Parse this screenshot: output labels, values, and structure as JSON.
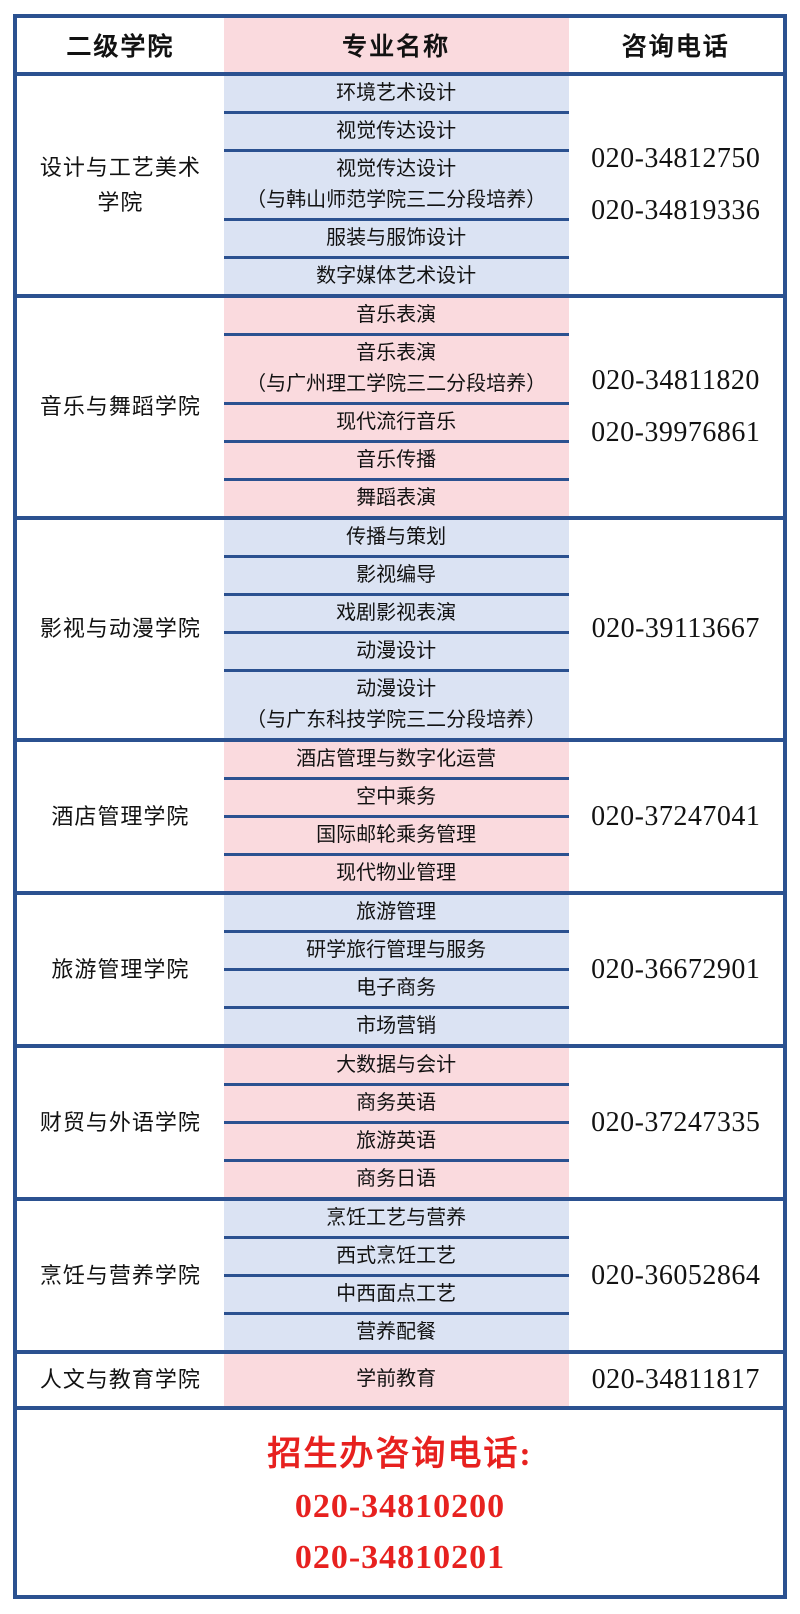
{
  "colors": {
    "border": "#2b5190",
    "pink": "#fadade",
    "blue": "#dbe3f3",
    "red": "#e7211f"
  },
  "table": {
    "headers": [
      "二级学院",
      "专业名称",
      "咨询电话"
    ],
    "sections": [
      {
        "college": "设计与工艺美术学院",
        "tint": "blue",
        "majors": [
          [
            "环境艺术设计"
          ],
          [
            "视觉传达设计"
          ],
          [
            "视觉传达设计",
            "（与韩山师范学院三二分段培养）"
          ],
          [
            "服装与服饰设计"
          ],
          [
            "数字媒体艺术设计"
          ]
        ],
        "phones": [
          "020-34812750",
          "020-34819336"
        ]
      },
      {
        "college": "音乐与舞蹈学院",
        "tint": "pink",
        "majors": [
          [
            "音乐表演"
          ],
          [
            "音乐表演",
            "（与广州理工学院三二分段培养）"
          ],
          [
            "现代流行音乐"
          ],
          [
            "音乐传播"
          ],
          [
            "舞蹈表演"
          ]
        ],
        "phones": [
          "020-34811820",
          "020-39976861"
        ]
      },
      {
        "college": "影视与动漫学院",
        "tint": "blue",
        "majors": [
          [
            "传播与策划"
          ],
          [
            "影视编导"
          ],
          [
            "戏剧影视表演"
          ],
          [
            "动漫设计"
          ],
          [
            "动漫设计",
            "（与广东科技学院三二分段培养）"
          ]
        ],
        "phones": [
          "020-39113667"
        ]
      },
      {
        "college": "酒店管理学院",
        "tint": "pink",
        "majors": [
          [
            "酒店管理与数字化运营"
          ],
          [
            "空中乘务"
          ],
          [
            "国际邮轮乘务管理"
          ],
          [
            "现代物业管理"
          ]
        ],
        "phones": [
          "020-37247041"
        ]
      },
      {
        "college": "旅游管理学院",
        "tint": "blue",
        "majors": [
          [
            "旅游管理"
          ],
          [
            "研学旅行管理与服务"
          ],
          [
            "电子商务"
          ],
          [
            "市场营销"
          ]
        ],
        "phones": [
          "020-36672901"
        ]
      },
      {
        "college": "财贸与外语学院",
        "tint": "pink",
        "majors": [
          [
            "大数据与会计"
          ],
          [
            "商务英语"
          ],
          [
            "旅游英语"
          ],
          [
            "商务日语"
          ]
        ],
        "phones": [
          "020-37247335"
        ]
      },
      {
        "college": "烹饪与营养学院",
        "tint": "blue",
        "majors": [
          [
            "烹饪工艺与营养"
          ],
          [
            "西式烹饪工艺"
          ],
          [
            "中西面点工艺"
          ],
          [
            "营养配餐"
          ]
        ],
        "phones": [
          "020-36052864"
        ]
      },
      {
        "college": "人文与教育学院",
        "tint": "pink",
        "majors": [
          [
            "学前教育"
          ]
        ],
        "phones": [
          "020-34811817"
        ]
      }
    ]
  },
  "footer": {
    "title": "招生办咨询电话:",
    "phones": [
      "020-34810200",
      "020-34810201"
    ]
  }
}
